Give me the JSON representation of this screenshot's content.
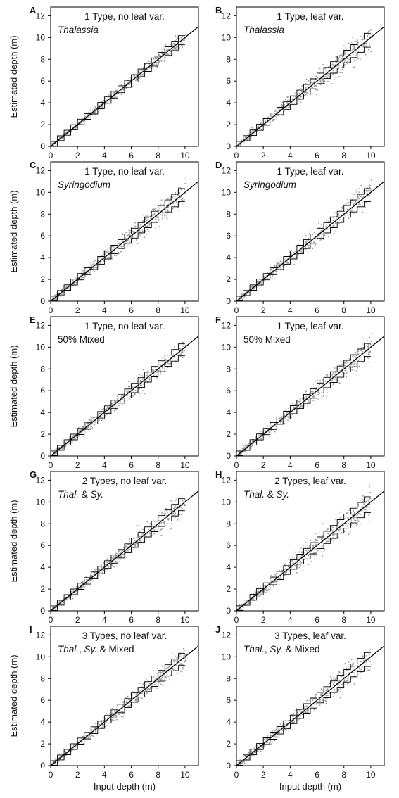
{
  "figure": {
    "ylabel": "Estimated depth (m)",
    "xlabel": "Input depth (m)"
  },
  "chart_data": [
    {
      "letter": "A",
      "type": "scatter",
      "annotation": [
        [
          {
            "t": "1 Type, no leaf var.",
            "i": false
          }
        ],
        [
          {
            "t": "Thalassia",
            "i": true
          }
        ]
      ],
      "spread": 0.25,
      "xlim": [
        0,
        11
      ],
      "ylim": [
        0,
        12.8
      ],
      "xticks": [
        0,
        2,
        4,
        6,
        8,
        10
      ],
      "yticks": [
        0,
        2,
        4,
        6,
        8,
        10,
        12
      ],
      "fit": {
        "slope": 1.0,
        "intercept": 0
      }
    },
    {
      "letter": "B",
      "type": "scatter",
      "annotation": [
        [
          {
            "t": "1 Type, leaf var.",
            "i": false
          }
        ],
        [
          {
            "t": "Thalassia",
            "i": true
          }
        ]
      ],
      "spread": 0.5,
      "xlim": [
        0,
        11
      ],
      "ylim": [
        0,
        12.8
      ],
      "xticks": [
        0,
        2,
        4,
        6,
        8,
        10
      ],
      "yticks": [
        0,
        2,
        4,
        6,
        8,
        10,
        12
      ],
      "fit": {
        "slope": 1.0,
        "intercept": 0
      }
    },
    {
      "letter": "C",
      "type": "scatter",
      "annotation": [
        [
          {
            "t": "1 Type, no leaf var.",
            "i": false
          }
        ],
        [
          {
            "t": "Syringodium",
            "i": true
          }
        ]
      ],
      "spread": 0.45,
      "xlim": [
        0,
        11
      ],
      "ylim": [
        0,
        12.8
      ],
      "xticks": [
        0,
        2,
        4,
        6,
        8,
        10
      ],
      "yticks": [
        0,
        2,
        4,
        6,
        8,
        10,
        12
      ],
      "fit": {
        "slope": 1.0,
        "intercept": 0
      }
    },
    {
      "letter": "D",
      "type": "scatter",
      "annotation": [
        [
          {
            "t": "1 Type, leaf var.",
            "i": false
          }
        ],
        [
          {
            "t": "Syringodium",
            "i": true
          }
        ]
      ],
      "spread": 0.45,
      "xlim": [
        0,
        11
      ],
      "ylim": [
        0,
        12.8
      ],
      "xticks": [
        0,
        2,
        4,
        6,
        8,
        10
      ],
      "yticks": [
        0,
        2,
        4,
        6,
        8,
        10,
        12
      ],
      "fit": {
        "slope": 1.0,
        "intercept": 0
      }
    },
    {
      "letter": "E",
      "type": "scatter",
      "annotation": [
        [
          {
            "t": "1 Type, no leaf var.",
            "i": false
          }
        ],
        [
          {
            "t": "50% Mixed",
            "i": false
          }
        ]
      ],
      "spread": 0.4,
      "xlim": [
        0,
        11
      ],
      "ylim": [
        0,
        12.8
      ],
      "xticks": [
        0,
        2,
        4,
        6,
        8,
        10
      ],
      "yticks": [
        0,
        2,
        4,
        6,
        8,
        10,
        12
      ],
      "fit": {
        "slope": 1.0,
        "intercept": 0
      }
    },
    {
      "letter": "F",
      "type": "scatter",
      "annotation": [
        [
          {
            "t": "1 Type, leaf var.",
            "i": false
          }
        ],
        [
          {
            "t": "50% Mixed",
            "i": false
          }
        ]
      ],
      "spread": 0.45,
      "xlim": [
        0,
        11
      ],
      "ylim": [
        0,
        12.8
      ],
      "xticks": [
        0,
        2,
        4,
        6,
        8,
        10
      ],
      "yticks": [
        0,
        2,
        4,
        6,
        8,
        10,
        12
      ],
      "fit": {
        "slope": 1.0,
        "intercept": 0
      }
    },
    {
      "letter": "G",
      "type": "scatter",
      "annotation": [
        [
          {
            "t": "2 Types, no leaf var.",
            "i": false
          }
        ],
        [
          {
            "t": "Thal.",
            "i": true
          },
          {
            "t": " & ",
            "i": false
          },
          {
            "t": "Sy.",
            "i": true
          }
        ]
      ],
      "spread": 0.4,
      "xlim": [
        0,
        11
      ],
      "ylim": [
        0,
        12.8
      ],
      "xticks": [
        0,
        2,
        4,
        6,
        8,
        10
      ],
      "yticks": [
        0,
        2,
        4,
        6,
        8,
        10,
        12
      ],
      "fit": {
        "slope": 1.0,
        "intercept": 0
      }
    },
    {
      "letter": "H",
      "type": "scatter",
      "annotation": [
        [
          {
            "t": "2 Types, leaf var.",
            "i": false
          }
        ],
        [
          {
            "t": "Thal.",
            "i": true
          },
          {
            "t": " & ",
            "i": false
          },
          {
            "t": "Sy.",
            "i": true
          }
        ]
      ],
      "spread": 0.6,
      "xlim": [
        0,
        11
      ],
      "ylim": [
        0,
        12.8
      ],
      "xticks": [
        0,
        2,
        4,
        6,
        8,
        10
      ],
      "yticks": [
        0,
        2,
        4,
        6,
        8,
        10,
        12
      ],
      "fit": {
        "slope": 1.0,
        "intercept": 0
      }
    },
    {
      "letter": "I",
      "type": "scatter",
      "annotation": [
        [
          {
            "t": "3 Types, no leaf var.",
            "i": false
          }
        ],
        [
          {
            "t": "Thal.",
            "i": true
          },
          {
            "t": ", ",
            "i": false
          },
          {
            "t": "Sy.",
            "i": true
          },
          {
            "t": " & Mixed",
            "i": false
          }
        ]
      ],
      "spread": 0.4,
      "xlim": [
        0,
        11
      ],
      "ylim": [
        0,
        12.8
      ],
      "xticks": [
        0,
        2,
        4,
        6,
        8,
        10
      ],
      "yticks": [
        0,
        2,
        4,
        6,
        8,
        10,
        12
      ],
      "fit": {
        "slope": 1.0,
        "intercept": 0
      }
    },
    {
      "letter": "J",
      "type": "scatter",
      "annotation": [
        [
          {
            "t": "3 Types, leaf var.",
            "i": false
          }
        ],
        [
          {
            "t": "Thal.",
            "i": true
          },
          {
            "t": ", ",
            "i": false
          },
          {
            "t": "Sy.",
            "i": true
          },
          {
            "t": " & Mixed",
            "i": false
          }
        ]
      ],
      "spread": 0.5,
      "xlim": [
        0,
        11
      ],
      "ylim": [
        0,
        12.8
      ],
      "xticks": [
        0,
        2,
        4,
        6,
        8,
        10
      ],
      "yticks": [
        0,
        2,
        4,
        6,
        8,
        10,
        12
      ],
      "fit": {
        "slope": 1.0,
        "intercept": 0
      }
    }
  ]
}
